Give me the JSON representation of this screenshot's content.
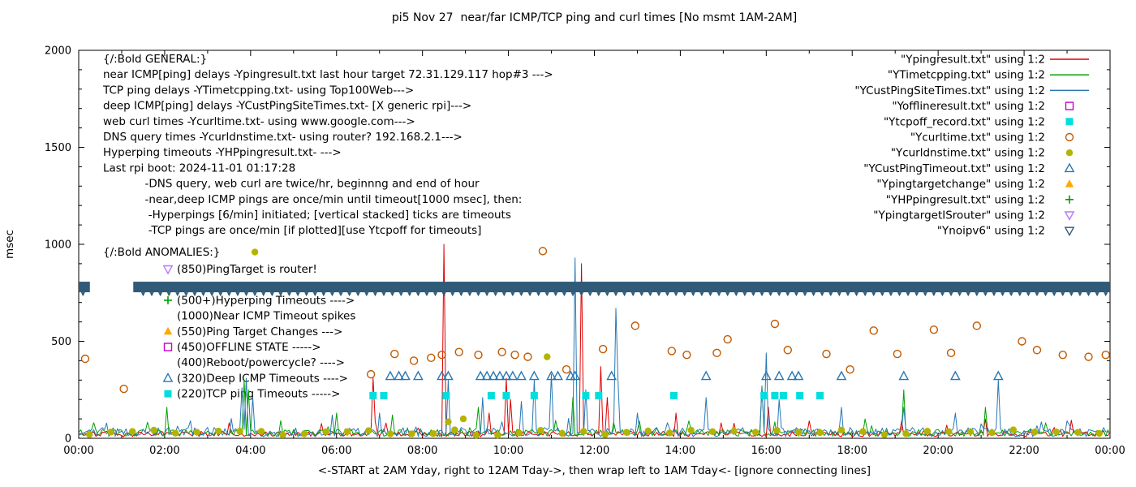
{
  "chart_data": {
    "type": "line",
    "title": "pi5 Nov 27  near/far ICMP/TCP ping and curl times [No msmt 1AM-2AM]",
    "xlabel": "<-START at 2AM Yday, right to 12AM Tday->, then wrap left to 1AM Tday<- [ignore connecting lines]",
    "ylabel": "msec",
    "xlim": [
      0,
      24
    ],
    "ylim": [
      0,
      2000
    ],
    "grid": false,
    "x_ticks": [
      {
        "h": 0,
        "label": "00:00"
      },
      {
        "h": 2,
        "label": "02:00"
      },
      {
        "h": 4,
        "label": "04:00"
      },
      {
        "h": 6,
        "label": "06:00"
      },
      {
        "h": 8,
        "label": "08:00"
      },
      {
        "h": 10,
        "label": "10:00"
      },
      {
        "h": 12,
        "label": "12:00"
      },
      {
        "h": 14,
        "label": "14:00"
      },
      {
        "h": 16,
        "label": "16:00"
      },
      {
        "h": 18,
        "label": "18:00"
      },
      {
        "h": 20,
        "label": "20:00"
      },
      {
        "h": 22,
        "label": "22:00"
      },
      {
        "h": 24,
        "label": "00:00"
      }
    ],
    "y_ticks": [
      0,
      500,
      1000,
      1500,
      2000
    ],
    "legend": [
      {
        "label": "\"Ypingresult.txt\" using 1:2",
        "marker": "line",
        "color": "#dd0000"
      },
      {
        "label": "\"YTimetcpping.txt\" using 1:2",
        "marker": "line",
        "color": "#00a000"
      },
      {
        "label": "\"YCustPingSiteTimes.txt\" using 1:2",
        "marker": "line",
        "color": "#2878b4"
      },
      {
        "label": "\"Yofflineresult.txt\" using 1:2",
        "marker": "square-open",
        "color": "#c800c8"
      },
      {
        "label": "\"Ytcpoff_record.txt\" using 1:2",
        "marker": "square-filled",
        "color": "#00dede"
      },
      {
        "label": "\"Ycurltime.txt\" using 1:2",
        "marker": "circle-open",
        "color": "#c05a00"
      },
      {
        "label": "\"Ycurldnstime.txt\" using 1:2",
        "marker": "circle-filled",
        "color": "#b4b400"
      },
      {
        "label": "\"YCustPingTimeout.txt\" using 1:2",
        "marker": "triangle-open",
        "color": "#2878b4"
      },
      {
        "label": "\"Ypingtargetchange\" using 1:2",
        "marker": "triangle-filled",
        "color": "#ffa800"
      },
      {
        "label": "\"YHPpingresult.txt\" using 1:2",
        "marker": "plus",
        "color": "#00a000"
      },
      {
        "label": "\"YpingtargetISrouter\" using 1:2",
        "marker": "triangle-down-open",
        "color": "#bb77ff"
      },
      {
        "label": "\"Ynoipv6\" using 1:2",
        "marker": "triangle-down-open",
        "color": "#2f5a78"
      }
    ],
    "series": {
      "lines": [
        {
          "name": "Ypingresult",
          "color": "#dd0000",
          "baseline": 22,
          "jitter": 14,
          "seed": 7,
          "spikes": [
            [
              3.5,
              80
            ],
            [
              6.85,
              310
            ],
            [
              8.5,
              1000
            ],
            [
              9.55,
              130
            ],
            [
              9.95,
              310
            ],
            [
              10.05,
              200
            ],
            [
              11.7,
              900
            ],
            [
              12.15,
              370
            ],
            [
              12.3,
              210
            ],
            [
              13.9,
              130
            ],
            [
              16.05,
              160
            ],
            [
              17.0,
              90
            ],
            [
              19.15,
              90
            ],
            [
              21.1,
              100
            ]
          ]
        },
        {
          "name": "YTimetcpping",
          "color": "#00a000",
          "baseline": 28,
          "jitter": 18,
          "seed": 13,
          "spikes": [
            [
              2.05,
              160
            ],
            [
              3.85,
              300
            ],
            [
              3.95,
              250
            ],
            [
              6.0,
              130
            ],
            [
              7.3,
              120
            ],
            [
              9.3,
              160
            ],
            [
              11.5,
              210
            ],
            [
              14.2,
              90
            ],
            [
              15.9,
              270
            ],
            [
              18.3,
              100
            ],
            [
              19.2,
              250
            ],
            [
              21.1,
              160
            ],
            [
              22.5,
              80
            ]
          ]
        },
        {
          "name": "YCustPingSiteTimes",
          "color": "#2878b4",
          "baseline": 32,
          "jitter": 24,
          "seed": 29,
          "spikes": [
            [
              2.6,
              90
            ],
            [
              3.8,
              260
            ],
            [
              3.9,
              310
            ],
            [
              4.05,
              210
            ],
            [
              5.9,
              120
            ],
            [
              7.0,
              130
            ],
            [
              8.6,
              300
            ],
            [
              9.4,
              210
            ],
            [
              10.3,
              190
            ],
            [
              10.6,
              300
            ],
            [
              11.0,
              330
            ],
            [
              11.55,
              930
            ],
            [
              11.8,
              250
            ],
            [
              12.5,
              670
            ],
            [
              12.55,
              300
            ],
            [
              13.0,
              130
            ],
            [
              14.6,
              210
            ],
            [
              15.9,
              260
            ],
            [
              16.0,
              440
            ],
            [
              16.3,
              200
            ],
            [
              17.75,
              160
            ],
            [
              19.2,
              160
            ],
            [
              20.4,
              130
            ],
            [
              21.4,
              300
            ],
            [
              23.0,
              90
            ]
          ]
        }
      ],
      "scatter": [
        {
          "name": "Ycurltime",
          "marker": "circle-open",
          "color": "#c05a00",
          "points": [
            [
              0.15,
              410
            ],
            [
              1.05,
              255
            ],
            [
              6.8,
              330
            ],
            [
              7.35,
              435
            ],
            [
              7.8,
              400
            ],
            [
              8.2,
              415
            ],
            [
              8.45,
              430
            ],
            [
              8.85,
              445
            ],
            [
              9.3,
              430
            ],
            [
              9.85,
              445
            ],
            [
              10.15,
              430
            ],
            [
              10.45,
              420
            ],
            [
              10.8,
              965
            ],
            [
              11.35,
              355
            ],
            [
              12.2,
              460
            ],
            [
              12.95,
              580
            ],
            [
              13.8,
              450
            ],
            [
              14.15,
              430
            ],
            [
              14.85,
              440
            ],
            [
              15.1,
              510
            ],
            [
              16.2,
              590
            ],
            [
              16.5,
              455
            ],
            [
              17.4,
              435
            ],
            [
              17.95,
              355
            ],
            [
              18.5,
              555
            ],
            [
              19.05,
              435
            ],
            [
              19.9,
              560
            ],
            [
              20.3,
              440
            ],
            [
              20.9,
              580
            ],
            [
              21.95,
              500
            ],
            [
              22.3,
              455
            ],
            [
              22.9,
              430
            ],
            [
              23.5,
              420
            ],
            [
              23.9,
              430
            ]
          ]
        },
        {
          "name": "Ycurldnstime",
          "marker": "circle-filled",
          "color": "#b4b400",
          "points": [
            [
              4.1,
              960
            ],
            [
              8.6,
              85
            ],
            [
              8.95,
              100
            ],
            [
              10.9,
              420
            ]
          ],
          "regular": {
            "from": 0.25,
            "to": 23.75,
            "step": 0.5,
            "value": 30,
            "jitter": 14,
            "seed": 91
          }
        },
        {
          "name": "YCustPingTimeout",
          "marker": "triangle-open",
          "color": "#2878b4",
          "points": [
            [
              7.25,
              320
            ],
            [
              7.45,
              320
            ],
            [
              7.6,
              320
            ],
            [
              7.9,
              320
            ],
            [
              8.45,
              320
            ],
            [
              8.6,
              320
            ],
            [
              9.35,
              320
            ],
            [
              9.5,
              320
            ],
            [
              9.65,
              320
            ],
            [
              9.8,
              320
            ],
            [
              9.95,
              320
            ],
            [
              10.1,
              320
            ],
            [
              10.3,
              320
            ],
            [
              10.6,
              320
            ],
            [
              11.0,
              320
            ],
            [
              11.15,
              320
            ],
            [
              11.45,
              320
            ],
            [
              11.55,
              320
            ],
            [
              12.4,
              320
            ],
            [
              14.6,
              320
            ],
            [
              16.0,
              320
            ],
            [
              16.3,
              320
            ],
            [
              16.6,
              320
            ],
            [
              16.75,
              320
            ],
            [
              17.75,
              320
            ],
            [
              19.2,
              320
            ],
            [
              20.4,
              320
            ],
            [
              21.4,
              320
            ]
          ]
        },
        {
          "name": "Ytcpoff_record",
          "marker": "square-filled",
          "color": "#00dede",
          "points": [
            [
              6.85,
              220
            ],
            [
              7.1,
              220
            ],
            [
              8.55,
              220
            ],
            [
              9.6,
              220
            ],
            [
              9.95,
              220
            ],
            [
              10.6,
              220
            ],
            [
              11.8,
              220
            ],
            [
              12.1,
              220
            ],
            [
              13.85,
              220
            ],
            [
              15.95,
              220
            ],
            [
              16.2,
              220
            ],
            [
              16.4,
              220
            ],
            [
              16.78,
              220
            ],
            [
              17.25,
              220
            ]
          ]
        }
      ],
      "band": {
        "name": "Ynoipv6",
        "color": "#2f5a78",
        "value": 780,
        "gap": [
          0.26,
          1.27
        ],
        "tick_step": 0.2
      }
    },
    "annotations": {
      "general": [
        "{/:Bold GENERAL:}",
        "near ICMP[ping] delays -Ypingresult.txt last hour target 72.31.129.117 hop#3 --->",
        "TCP ping delays -YTimetcpping.txt- using Top100Web--->",
        "deep ICMP[ping] delays -YCustPingSiteTimes.txt- [X generic rpi]--->",
        "web curl times -Ycurltime.txt- using www.google.com--->",
        "DNS query times -Ycurldnstime.txt- using router? 192.168.2.1--->",
        "Hyperping timeouts -YHPpingresult.txt- --->",
        "Last rpi boot: 2024-11-01 01:17:28",
        "            -DNS query, web curl are twice/hr, beginnng and end of hour",
        "            -near,deep ICMP pings are once/min until timeout[1000 msec], then:",
        "             -Hyperpings [6/min] initiated; [vertical stacked] ticks are timeouts",
        "             -TCP pings are once/min [if plotted][use Ytcpoff for timeouts]"
      ],
      "anomalies_title": "{/:Bold ANOMALIES:}",
      "anomalies": [
        {
          "icon": "triangle-down-open",
          "color": "#bb77ff",
          "text": "(850)PingTarget is router!"
        },
        {
          "icon": null,
          "color": null,
          "text": ""
        },
        {
          "icon": "plus",
          "color": "#00a000",
          "text": "(500+)Hyperping Timeouts ---->"
        },
        {
          "icon": null,
          "color": null,
          "text": "(1000)Near ICMP Timeout spikes"
        },
        {
          "icon": "triangle-filled",
          "color": "#ffa800",
          "text": "(550)Ping Target Changes --->"
        },
        {
          "icon": "square-open",
          "color": "#c800c8",
          "text": "(450)OFFLINE STATE ----->"
        },
        {
          "icon": null,
          "color": null,
          "text": "(400)Reboot/powercycle? ---->"
        },
        {
          "icon": "triangle-open",
          "color": "#2878b4",
          "text": "(320)Deep ICMP Timeouts ---->"
        },
        {
          "icon": "square-filled",
          "color": "#00dede",
          "text": "(220)TCP ping Timeouts ----->"
        }
      ]
    }
  }
}
